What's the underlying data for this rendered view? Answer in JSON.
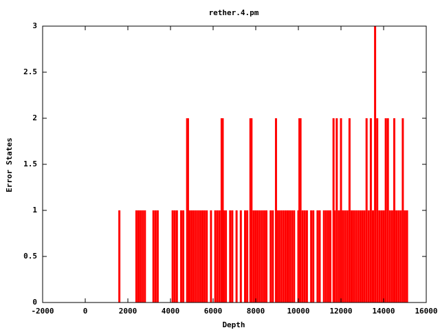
{
  "chart_data": {
    "type": "impulse",
    "title": "rether.4.pm",
    "x_label": "Depth",
    "y_label": "Error States",
    "color": "#ff0000",
    "x": [
      1600,
      2400,
      2500,
      2600,
      2700,
      2800,
      3200,
      3300,
      3400,
      4100,
      4200,
      4300,
      4500,
      4600,
      4780,
      4820,
      4900,
      5000,
      5100,
      5200,
      5300,
      5400,
      5500,
      5600,
      5700,
      5900,
      6100,
      6200,
      6300,
      6400,
      6450,
      6500,
      6600,
      6800,
      6900,
      7100,
      7300,
      7500,
      7600,
      7750,
      7800,
      7900,
      8000,
      8100,
      8200,
      8300,
      8400,
      8500,
      8700,
      8800,
      8950,
      9000,
      9100,
      9200,
      9300,
      9400,
      9500,
      9600,
      9700,
      9800,
      10000,
      10050,
      10100,
      10200,
      10300,
      10400,
      10600,
      10700,
      10900,
      11000,
      11200,
      11300,
      11400,
      11500,
      11650,
      11700,
      11800,
      11900,
      12000,
      12100,
      12200,
      12300,
      12400,
      12500,
      12600,
      12700,
      12800,
      12900,
      13000,
      13100,
      13200,
      13300,
      13400,
      13500,
      13600,
      13700,
      13800,
      13900,
      14000,
      14100,
      14200,
      14300,
      14400,
      14500,
      14600,
      14700,
      14800,
      14900,
      15000,
      15100
    ],
    "values": [
      1,
      1,
      1,
      1,
      1,
      1,
      1,
      1,
      1,
      1,
      1,
      1,
      1,
      1,
      2,
      2,
      1,
      1,
      1,
      1,
      1,
      1,
      1,
      1,
      1,
      1,
      1,
      1,
      1,
      2,
      2,
      1,
      1,
      1,
      1,
      1,
      1,
      1,
      1,
      2,
      2,
      1,
      1,
      1,
      1,
      1,
      1,
      1,
      1,
      1,
      2,
      1,
      1,
      1,
      1,
      1,
      1,
      1,
      1,
      1,
      1,
      2,
      2,
      1,
      1,
      1,
      1,
      1,
      1,
      1,
      1,
      1,
      1,
      1,
      2,
      1,
      2,
      1,
      2,
      1,
      1,
      1,
      2,
      1,
      1,
      1,
      1,
      1,
      1,
      1,
      2,
      1,
      2,
      1,
      3,
      2,
      1,
      1,
      1,
      2,
      2,
      1,
      1,
      2,
      1,
      1,
      1,
      2,
      1,
      1
    ],
    "xlim": [
      -2000,
      16000
    ],
    "xticks": [
      -2000,
      0,
      2000,
      4000,
      6000,
      8000,
      10000,
      12000,
      14000,
      16000
    ],
    "ylim": [
      0,
      3
    ],
    "yticks": [
      0,
      0.5,
      1,
      1.5,
      2,
      2.5,
      3
    ]
  }
}
